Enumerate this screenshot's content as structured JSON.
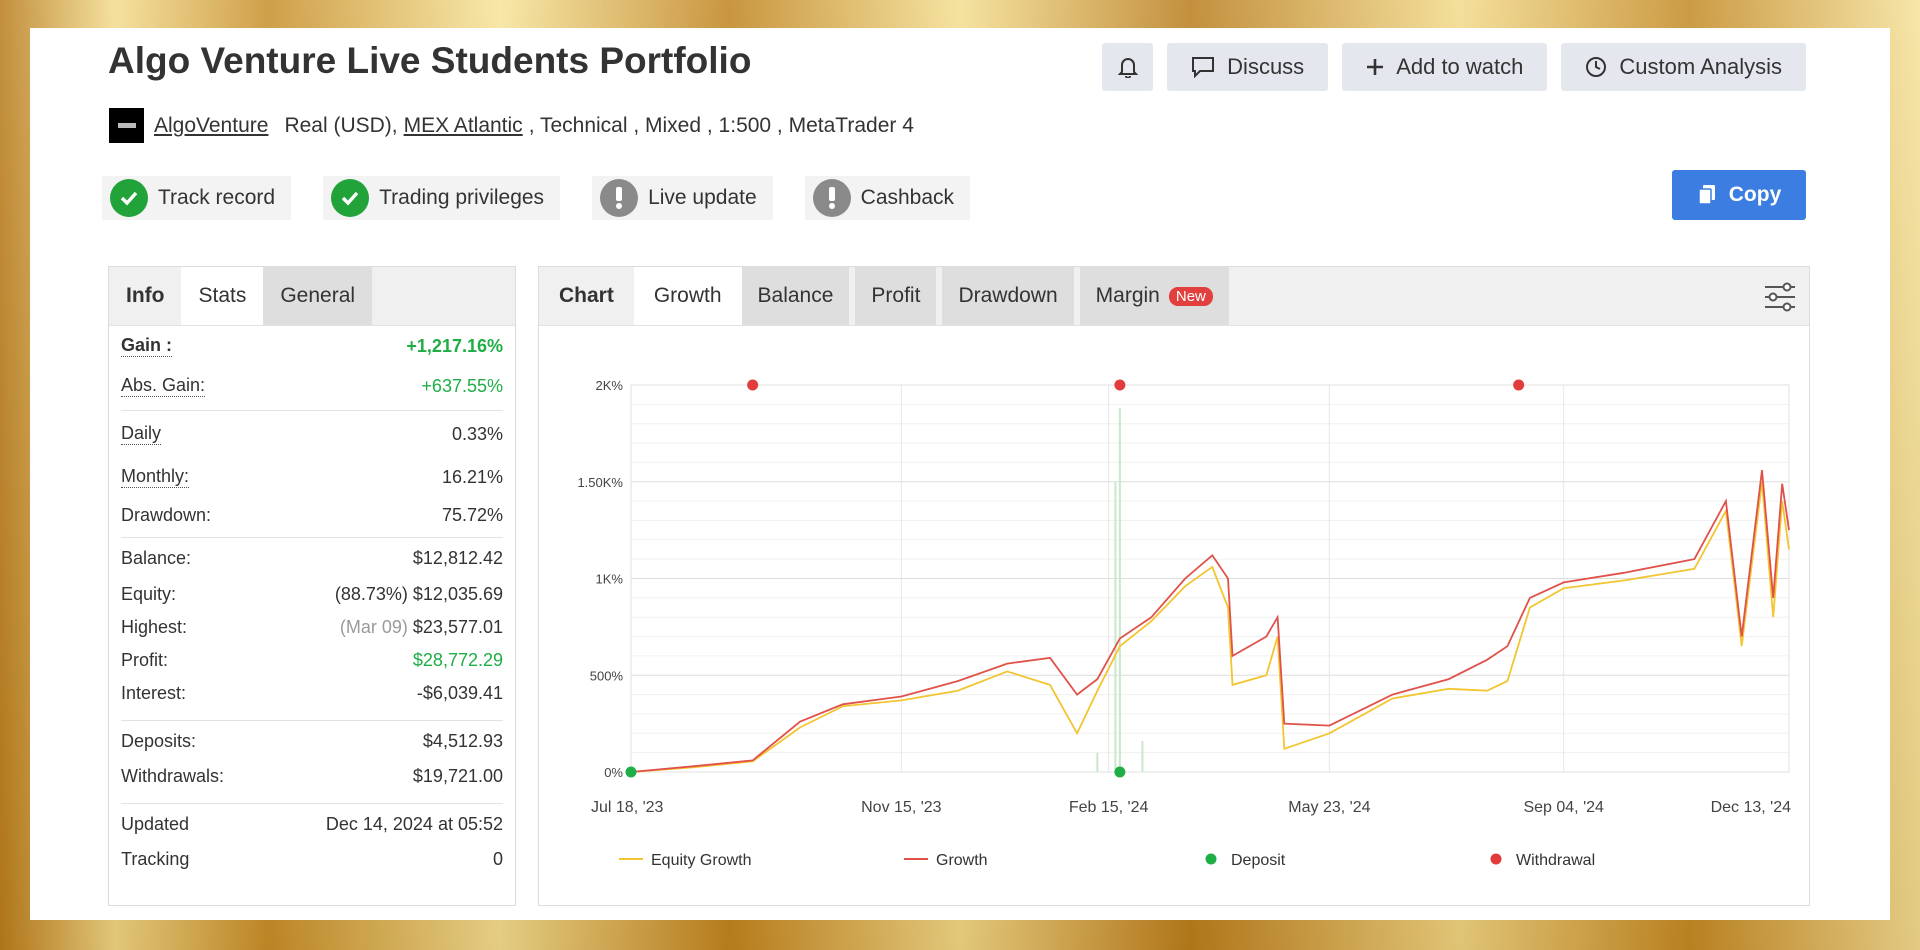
{
  "title": "Algo Venture Live Students Portfolio",
  "actions": {
    "bell_label": "",
    "discuss": "Discuss",
    "add_to_watch": "Add to watch",
    "custom_analysis": "Custom Analysis"
  },
  "meta": {
    "author": "AlgoVenture",
    "account_type": "Real (USD),",
    "broker": "MEX Atlantic",
    "details": ", Technical , Mixed , 1:500 , MetaTrader 4"
  },
  "badges": [
    {
      "label": "Track record",
      "status": "verified"
    },
    {
      "label": "Trading privileges",
      "status": "verified"
    },
    {
      "label": "Live update",
      "status": "pending"
    },
    {
      "label": "Cashback",
      "status": "pending"
    }
  ],
  "copy_label": "Copy",
  "left_tabs": [
    "Info",
    "Stats",
    "General"
  ],
  "stats": {
    "gain_label": "Gain :",
    "gain_value": "+1,217.16%",
    "abs_gain_label": "Abs. Gain:",
    "abs_gain_value": "+637.55%",
    "daily_label": "Daily",
    "daily_value": "0.33%",
    "monthly_label": "Monthly:",
    "monthly_value": "16.21%",
    "drawdown_label": "Drawdown:",
    "drawdown_value": "75.72%",
    "balance_label": "Balance:",
    "balance_value": "$12,812.42",
    "equity_label": "Equity:",
    "equity_pct": "(88.73%)",
    "equity_value": "$12,035.69",
    "highest_label": "Highest:",
    "highest_date": "(Mar 09)",
    "highest_value": "$23,577.01",
    "profit_label": "Profit:",
    "profit_value": "$28,772.29",
    "interest_label": "Interest:",
    "interest_value": "-$6,039.41",
    "deposits_label": "Deposits:",
    "deposits_value": "$4,512.93",
    "withdrawals_label": "Withdrawals:",
    "withdrawals_value": "$19,721.00",
    "updated_label": "Updated",
    "updated_value": "Dec 14, 2024 at 05:52",
    "tracking_label": "Tracking",
    "tracking_value": "0"
  },
  "chart_tabs": {
    "chart": "Chart",
    "growth": "Growth",
    "balance": "Balance",
    "profit": "Profit",
    "drawdown": "Drawdown",
    "margin": "Margin",
    "new_pill": "New"
  },
  "colors": {
    "equity": "#f2c531",
    "growth": "#e0514a",
    "deposit": "#1fae45",
    "withdrawal": "#e23b3b",
    "accent": "#3b7de0"
  },
  "chart_data": {
    "type": "line",
    "x_ticks": [
      "Jul 18, '23",
      "Nov 15, '23",
      "Feb 15, '24",
      "May 23, '24",
      "Sep 04, '24",
      "Dec 13, '24"
    ],
    "y_ticks": [
      "0%",
      "500%",
      "1K%",
      "1.50K%",
      "2K%"
    ],
    "ylim": [
      0,
      2000
    ],
    "legend": [
      "Equity Growth",
      "Growth",
      "Deposit",
      "Withdrawal"
    ],
    "series": [
      {
        "name": "Growth",
        "x": [
          "2023-07-18",
          "2023-08-15",
          "2023-09-10",
          "2023-10-01",
          "2023-10-20",
          "2023-11-15",
          "2023-12-10",
          "2024-01-01",
          "2024-01-20",
          "2024-02-01",
          "2024-02-10",
          "2024-02-20",
          "2024-03-05",
          "2024-03-20",
          "2024-04-01",
          "2024-04-08",
          "2024-04-10",
          "2024-04-25",
          "2024-04-30",
          "2024-05-03",
          "2024-05-23",
          "2024-06-20",
          "2024-07-15",
          "2024-08-01",
          "2024-08-10",
          "2024-08-20",
          "2024-09-04",
          "2024-10-01",
          "2024-11-01",
          "2024-11-15",
          "2024-11-22",
          "2024-12-01",
          "2024-12-06",
          "2024-12-10",
          "2024-12-13"
        ],
        "values": [
          0,
          30,
          60,
          260,
          350,
          390,
          470,
          560,
          590,
          400,
          480,
          690,
          800,
          1000,
          1120,
          1000,
          600,
          700,
          800,
          250,
          240,
          400,
          480,
          580,
          650,
          900,
          980,
          1030,
          1100,
          1400,
          700,
          1560,
          900,
          1490,
          1250
        ]
      },
      {
        "name": "Equity Growth",
        "x": [
          "2023-07-18",
          "2023-08-15",
          "2023-09-10",
          "2023-10-01",
          "2023-10-20",
          "2023-11-15",
          "2023-12-10",
          "2024-01-01",
          "2024-01-20",
          "2024-02-01",
          "2024-02-10",
          "2024-02-20",
          "2024-03-05",
          "2024-03-20",
          "2024-04-01",
          "2024-04-08",
          "2024-04-10",
          "2024-04-25",
          "2024-04-30",
          "2024-05-03",
          "2024-05-23",
          "2024-06-20",
          "2024-07-15",
          "2024-08-01",
          "2024-08-10",
          "2024-08-20",
          "2024-09-04",
          "2024-10-01",
          "2024-11-01",
          "2024-11-15",
          "2024-11-22",
          "2024-12-01",
          "2024-12-06",
          "2024-12-10",
          "2024-12-13"
        ],
        "values": [
          0,
          25,
          55,
          230,
          340,
          370,
          420,
          520,
          450,
          200,
          420,
          650,
          780,
          960,
          1060,
          850,
          450,
          500,
          700,
          120,
          200,
          380,
          430,
          420,
          470,
          850,
          950,
          990,
          1050,
          1350,
          650,
          1500,
          800,
          1400,
          1150
        ]
      }
    ],
    "deposits": [
      "2023-07-18",
      "2024-02-20"
    ],
    "withdrawals": [
      "2023-09-10",
      "2024-02-20",
      "2024-08-15"
    ]
  }
}
